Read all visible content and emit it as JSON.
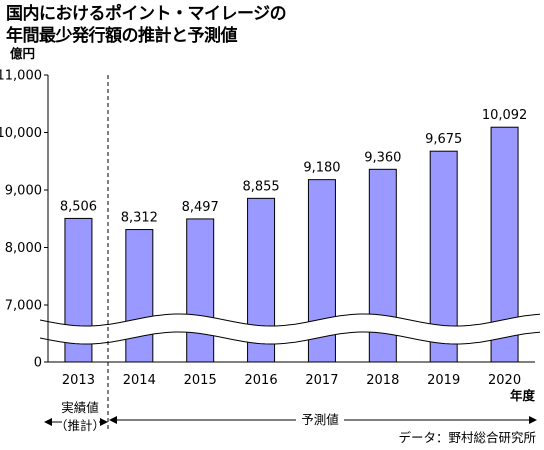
{
  "title_lines": [
    "国内におけるポイント・マイレージの",
    "年間最少発行額の推計と予測値"
  ],
  "chart_data": {
    "type": "bar",
    "title": "国内におけるポイント・マイレージの年間最少発行額の推計と予測値",
    "ylabel": "億円",
    "xlabel": "年度",
    "categories": [
      "2013",
      "2014",
      "2015",
      "2016",
      "2017",
      "2018",
      "2019",
      "2020"
    ],
    "values": [
      8506,
      8312,
      8497,
      8855,
      9180,
      9360,
      9675,
      10092
    ],
    "value_labels": [
      "8,506",
      "8,312",
      "8,497",
      "8,855",
      "9,180",
      "9,360",
      "9,675",
      "10,092"
    ],
    "yticks": [
      "0",
      "7,000",
      "8,000",
      "9,000",
      "10,000",
      "11,000"
    ],
    "ylim": [
      7000,
      11000
    ],
    "axis_break": "0 と 7,000 の間",
    "grid": false,
    "bar_color": "#9999ff",
    "bar_edge_color": "#000000"
  },
  "annotations": {
    "actual_label_line1": "実績値",
    "actual_label_line2": "（推計）",
    "forecast_label": "予測値",
    "source": "データ：野村総合研究所"
  }
}
